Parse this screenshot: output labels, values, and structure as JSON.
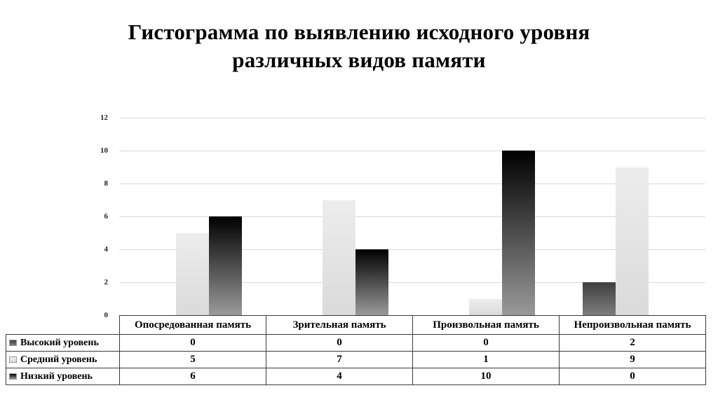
{
  "title": "Гистограмма по выявлению исходного уровня различных видов памяти",
  "chart_data": {
    "type": "bar",
    "title": "Гистограмма по выявлению исходного уровня различных видов памяти",
    "categories": [
      "Опосредованная память",
      "Зрительная память",
      "Произвольная память",
      "Непроизвольная память"
    ],
    "series": [
      {
        "name": "Высокий уровень",
        "values": [
          0,
          0,
          0,
          2
        ],
        "color_top": "#3f3f3f",
        "color_bottom": "#7d7d7d"
      },
      {
        "name": "Средний уровень",
        "values": [
          5,
          7,
          1,
          9
        ],
        "color_top": "#ededed",
        "color_bottom": "#dadada"
      },
      {
        "name": "Низкий уровень",
        "values": [
          6,
          4,
          10,
          0
        ],
        "color_top": "#000000",
        "color_bottom": "#9a9a9a"
      }
    ],
    "xlabel": "",
    "ylabel": "",
    "ylim": [
      0,
      12
    ],
    "yticks": [
      0,
      2,
      4,
      6,
      8,
      10,
      12
    ],
    "grid": true,
    "gridline_color": "#d9d9d9",
    "legend_position": "table-rows-left",
    "data_table_shown": true
  }
}
